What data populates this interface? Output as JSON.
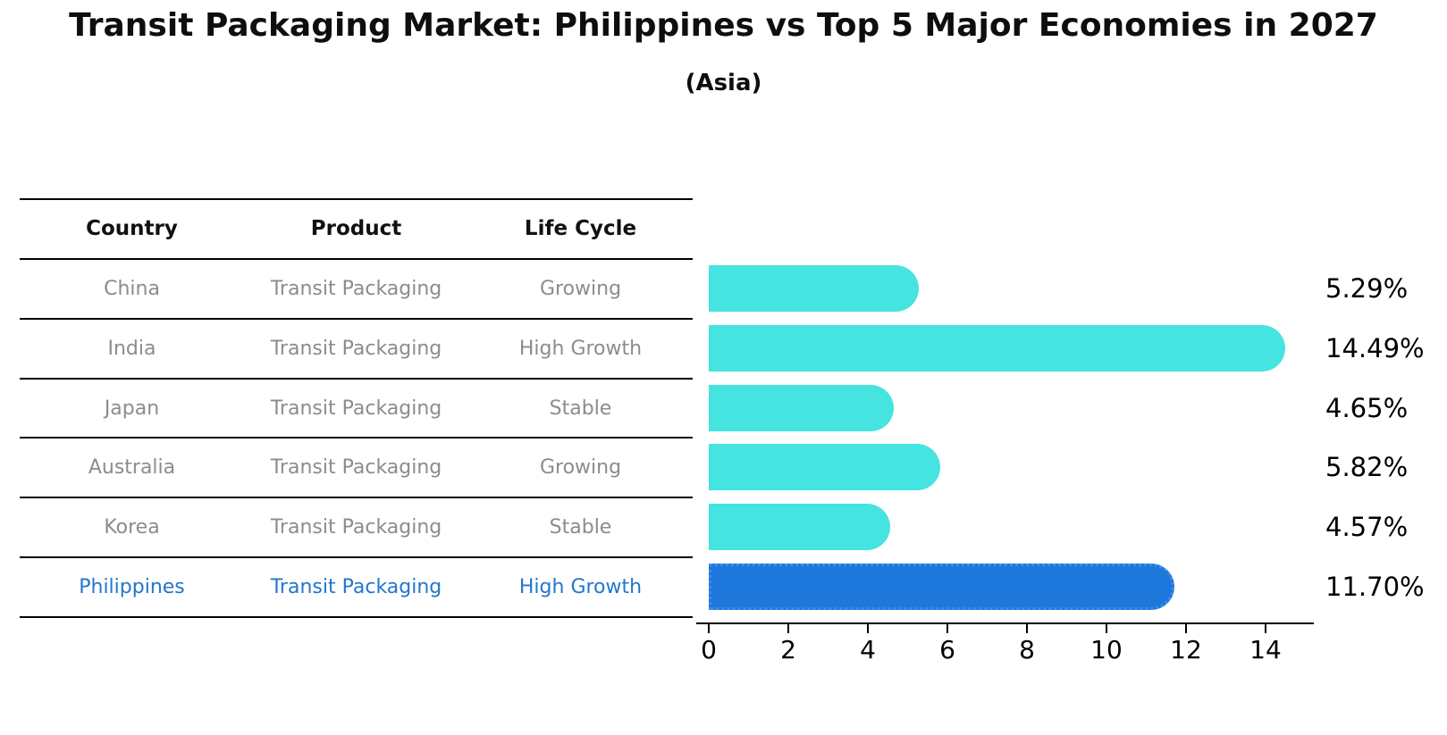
{
  "title": "Transit Packaging Market: Philippines vs Top 5 Major Economies in 2027",
  "subtitle": "(Asia)",
  "colors": {
    "bar_default": "#45E4E0",
    "bar_highlight": "#1E78DC",
    "bar_highlight_border": "#3C8CEC",
    "table_header_text": "#111111",
    "table_row_text": "#8C8C8C",
    "highlight_text": "#2277CD",
    "axis_line": "#000000"
  },
  "table": {
    "headers": [
      "Country",
      "Product",
      "Life Cycle"
    ],
    "rows": [
      {
        "country": "China",
        "product": "Transit Packaging",
        "life_cycle": "Growing",
        "highlight": false
      },
      {
        "country": "India",
        "product": "Transit Packaging",
        "life_cycle": "High Growth",
        "highlight": false
      },
      {
        "country": "Japan",
        "product": "Transit Packaging",
        "life_cycle": "Stable",
        "highlight": false
      },
      {
        "country": "Australia",
        "product": "Transit Packaging",
        "life_cycle": "Growing",
        "highlight": false
      },
      {
        "country": "Korea",
        "product": "Transit Packaging",
        "life_cycle": "Stable",
        "highlight": false
      },
      {
        "country": "Philippines",
        "product": "Transit Packaging",
        "life_cycle": "High Growth",
        "highlight": true
      }
    ]
  },
  "chart_data": {
    "type": "bar",
    "orientation": "horizontal",
    "title": "Transit Packaging Market: Philippines vs Top 5 Major Economies in 2027 (Asia)",
    "categories": [
      "China",
      "India",
      "Japan",
      "Australia",
      "Korea",
      "Philippines"
    ],
    "values": [
      5.29,
      14.49,
      4.65,
      5.82,
      4.57,
      11.7
    ],
    "value_labels": [
      "5.29%",
      "14.49%",
      "4.65%",
      "5.82%",
      "4.57%",
      "11.70%"
    ],
    "highlight_index": 5,
    "xlabel": "",
    "ylabel": "",
    "xlim": [
      0,
      15.2
    ],
    "x_ticks": [
      0,
      2,
      4,
      6,
      8,
      10,
      12,
      14
    ],
    "grid": false,
    "legend": false
  }
}
